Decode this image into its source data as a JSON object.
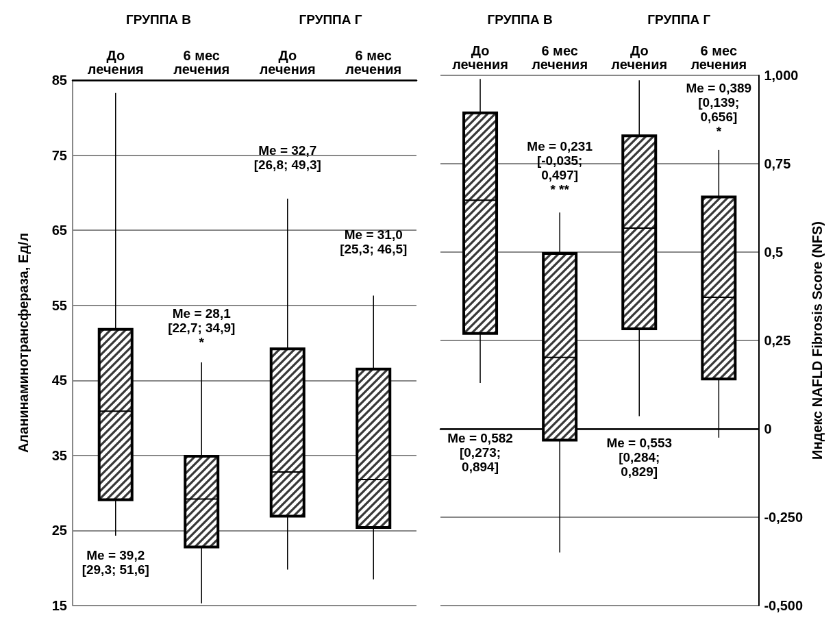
{
  "chart_data": [
    {
      "type": "box",
      "categories": [
        "До лечения",
        "6 мес лечения",
        "До лечения",
        "6 мес лечения"
      ],
      "ylabel": "Аланинаминотрансфераза, Ед/л",
      "ylim": [
        15,
        85
      ],
      "yticks": [
        15,
        25,
        35,
        45,
        55,
        65,
        75,
        85
      ],
      "grid": "y",
      "series": [
        {
          "color": "#000000",
          "boxes": [
            {
              "low": 24.3,
              "q1": 29.1,
              "median": 40.9,
              "q3": 51.8,
              "high": 83.3
            },
            {
              "low": 15.3,
              "q1": 22.8,
              "median": 29.2,
              "q3": 34.9,
              "high": 47.4
            },
            {
              "low": 19.8,
              "q1": 26.9,
              "median": 32.8,
              "q3": 49.2,
              "high": 69.2
            },
            {
              "low": 18.5,
              "q1": 25.4,
              "median": 31.8,
              "q3": 46.5,
              "high": 56.3
            }
          ]
        }
      ],
      "annotations": [
        "ГРУППА В",
        "ГРУППА Г",
        "Me = 39,2\n[29,3; 51,6]",
        "Me = 28,1\n[22,7; 34,9]\n*",
        "Me = 32,7\n[26,8; 49,3]",
        "Me = 31,0\n[25,3; 46,5]"
      ]
    },
    {
      "type": "box",
      "categories": [
        "До лечения",
        "6 мес лечения",
        "До лечения",
        "6 мес лечения"
      ],
      "y2label": "Индекс NAFLD Fibrosis Score (NFS)",
      "y2lim": [
        -0.5,
        1.0
      ],
      "y2ticks": [
        {
          "value": -0.5,
          "label": "-0,500"
        },
        {
          "value": -0.25,
          "label": "-0,250"
        },
        0,
        {
          "value": 0.25,
          "label": "0,25"
        },
        {
          "value": 0.5,
          "label": "0,5"
        },
        {
          "value": 0.75,
          "label": "0,75"
        },
        {
          "value": 1.0,
          "label": "1,000"
        }
      ],
      "grid": "y",
      "series": [
        {
          "color": "#000000",
          "axis": "y2",
          "boxes": [
            {
              "low": 0.13,
              "q1": 0.27,
              "median": 0.647,
              "q3": 0.894,
              "high": 0.99
            },
            {
              "low": -0.35,
              "q1": -0.032,
              "median": 0.202,
              "q3": 0.496,
              "high": 0.612
            },
            {
              "low": 0.036,
              "q1": 0.283,
              "median": 0.568,
              "q3": 0.829,
              "high": 0.986
            },
            {
              "low": -0.025,
              "q1": 0.141,
              "median": 0.372,
              "q3": 0.656,
              "high": 0.789
            }
          ]
        }
      ],
      "annotations": [
        "ГРУППА В",
        "ГРУППА Г",
        "Me = 0,582\n[0,273;\n0,894]",
        "Me = 0,231\n[-0,035;\n0,497]\n* **",
        "Me = 0,553\n[0,284;\n0,829]",
        "Me = 0,389\n[0,139;\n0,656]\n*"
      ]
    }
  ]
}
